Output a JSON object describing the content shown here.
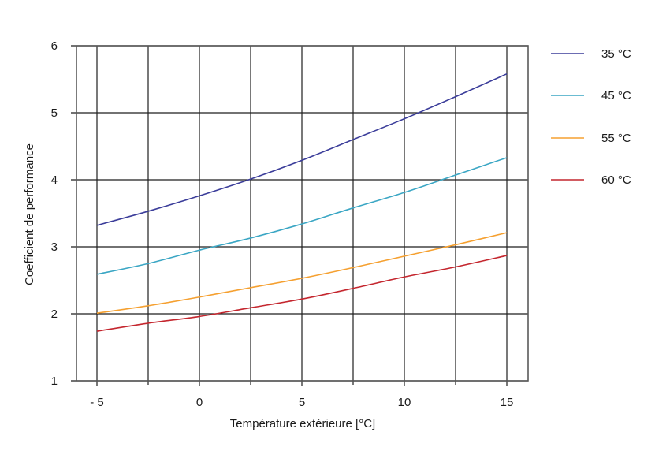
{
  "chart_data": {
    "type": "line",
    "title": "",
    "xlabel": "Température extérieure [°C]",
    "ylabel": "Coefficient de performance",
    "xlim": [
      -6,
      16
    ],
    "ylim": [
      1,
      6
    ],
    "xticks": [
      -5,
      0,
      5,
      10,
      15
    ],
    "xtick_labels": [
      "- 5",
      "0",
      "5",
      "10",
      "15"
    ],
    "x_minor_gridlines": [
      -2.5,
      2.5,
      7.5,
      12.5
    ],
    "yticks": [
      1,
      2,
      3,
      4,
      5,
      6
    ],
    "ytick_labels": [
      "1",
      "2",
      "3",
      "4",
      "5",
      "6"
    ],
    "grid": true,
    "legend_position": "right",
    "x": [
      -5,
      -2.5,
      0,
      2.5,
      5,
      7.5,
      10,
      12.5,
      15
    ],
    "series": [
      {
        "name": "35 °C",
        "color": "#3b3d9a",
        "values": [
          3.32,
          3.53,
          3.76,
          4.01,
          4.29,
          4.6,
          4.91,
          5.24,
          5.58
        ]
      },
      {
        "name": "45 °C",
        "color": "#3aa6c4",
        "values": [
          2.59,
          2.75,
          2.95,
          3.13,
          3.34,
          3.58,
          3.81,
          4.07,
          4.33
        ]
      },
      {
        "name": "55 °C",
        "color": "#f5a030",
        "values": [
          2.01,
          2.12,
          2.25,
          2.39,
          2.53,
          2.69,
          2.86,
          3.03,
          3.21
        ]
      },
      {
        "name": "60 °C",
        "color": "#c4262e",
        "values": [
          1.74,
          1.86,
          1.96,
          2.09,
          2.22,
          2.38,
          2.55,
          2.7,
          2.87
        ]
      }
    ]
  }
}
